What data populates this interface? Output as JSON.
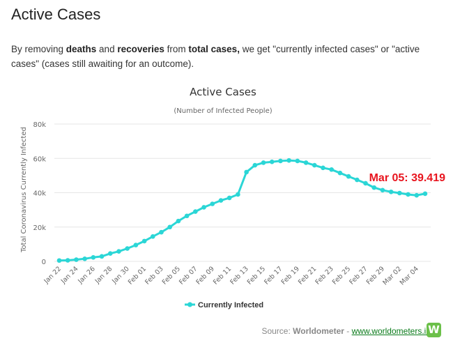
{
  "page": {
    "title": "Active Cases",
    "intro": {
      "t1": "By removing ",
      "b1": "deaths",
      "t2": " and ",
      "b2": "recoveries",
      "t3": " from ",
      "b3": "total cases,",
      "t4": " we get \"currently infected cases\" or \"active cases\" (cases still awaiting for an outcome)."
    },
    "source": {
      "prefix": "Source: ",
      "name": "Worldometer",
      "sep": " - ",
      "link": "www.worldometers.info",
      "logo_letter": "W"
    }
  },
  "chart_data": {
    "type": "line",
    "title": "Active Cases",
    "subtitle": "(Number of Infected People)",
    "ylabel": "Total Coronavirus Currently Infected",
    "xlabel": "",
    "ylim": [
      0,
      80000
    ],
    "yticks": [
      0,
      20000,
      40000,
      60000,
      80000
    ],
    "ytick_labels": [
      "0",
      "20k",
      "40k",
      "60k",
      "80k"
    ],
    "grid": true,
    "legend": "bottom-center",
    "color": "#2bd6d6",
    "x": [
      "Jan 22",
      "Jan 23",
      "Jan 24",
      "Jan 25",
      "Jan 26",
      "Jan 27",
      "Jan 28",
      "Jan 29",
      "Jan 30",
      "Jan 31",
      "Feb 01",
      "Feb 02",
      "Feb 03",
      "Feb 04",
      "Feb 05",
      "Feb 06",
      "Feb 07",
      "Feb 08",
      "Feb 09",
      "Feb 10",
      "Feb 11",
      "Feb 12",
      "Feb 13",
      "Feb 14",
      "Feb 15",
      "Feb 16",
      "Feb 17",
      "Feb 18",
      "Feb 19",
      "Feb 20",
      "Feb 21",
      "Feb 22",
      "Feb 23",
      "Feb 24",
      "Feb 25",
      "Feb 26",
      "Feb 27",
      "Feb 28",
      "Feb 29",
      "Mar 01",
      "Mar 02",
      "Mar 03",
      "Mar 04",
      "Mar 05"
    ],
    "xtick_labels": [
      "Jan 22",
      "Jan 24",
      "Jan 26",
      "Jan 28",
      "Jan 30",
      "Feb 01",
      "Feb 03",
      "Feb 05",
      "Feb 07",
      "Feb 09",
      "Feb 11",
      "Feb 13",
      "Feb 15",
      "Feb 17",
      "Feb 19",
      "Feb 21",
      "Feb 23",
      "Feb 25",
      "Feb 27",
      "Feb 29",
      "Mar 02",
      "Mar 04"
    ],
    "series": [
      {
        "name": "Currently Infected",
        "values": [
          510,
          610,
          1000,
          1500,
          2300,
          2900,
          4600,
          5800,
          7500,
          9500,
          11800,
          14500,
          17000,
          20000,
          23500,
          26500,
          29000,
          31500,
          33500,
          35500,
          37000,
          39000,
          52000,
          56000,
          57500,
          58000,
          58500,
          58800,
          58500,
          57500,
          56000,
          54500,
          53500,
          51500,
          49500,
          47500,
          45500,
          43000,
          41500,
          40500,
          39800,
          39000,
          38500,
          39419
        ]
      }
    ],
    "annotations": [
      {
        "text": "Mar 05: 39.419",
        "x": "Mar 05",
        "y": 39419,
        "color": "#e8141e"
      }
    ]
  }
}
